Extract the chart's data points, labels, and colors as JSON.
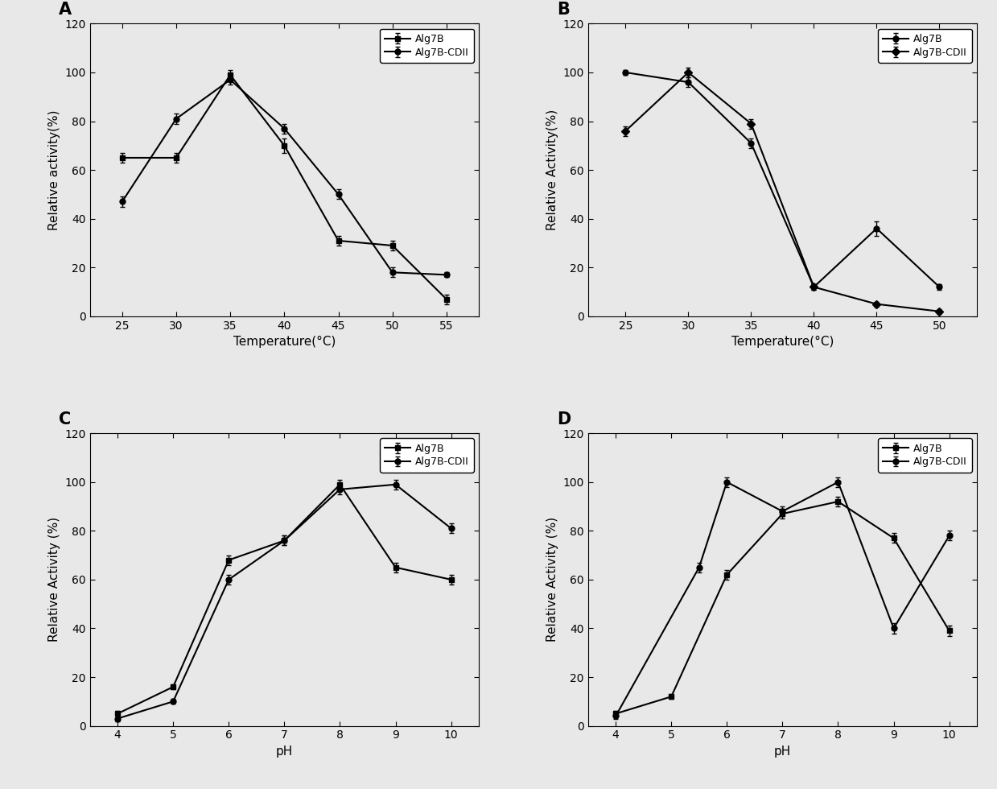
{
  "A": {
    "label": "A",
    "xlabel": "Temperature(°C)",
    "ylabel": "Relative activity(%)",
    "xlim": [
      22,
      58
    ],
    "ylim": [
      0,
      120
    ],
    "xticks": [
      25,
      30,
      35,
      40,
      45,
      50,
      55
    ],
    "yticks": [
      0,
      20,
      40,
      60,
      80,
      100,
      120
    ],
    "series": [
      {
        "name": "Alg7B",
        "marker": "s",
        "x": [
          25,
          30,
          35,
          40,
          45,
          50,
          55
        ],
        "y": [
          65,
          65,
          99,
          70,
          31,
          29,
          7
        ],
        "yerr": [
          2,
          2,
          2,
          3,
          2,
          2,
          2
        ]
      },
      {
        "name": "Alg7B-CDII",
        "marker": "o",
        "x": [
          25,
          30,
          35,
          40,
          45,
          50,
          55
        ],
        "y": [
          47,
          81,
          97,
          77,
          50,
          18,
          17
        ],
        "yerr": [
          2,
          2,
          2,
          2,
          2,
          2,
          1
        ]
      }
    ]
  },
  "B": {
    "label": "B",
    "xlabel": "Temperature(°C)",
    "ylabel": "Relative Activity(%)",
    "xlim": [
      22,
      53
    ],
    "ylim": [
      0,
      120
    ],
    "xticks": [
      25,
      30,
      35,
      40,
      45,
      50
    ],
    "yticks": [
      0,
      20,
      40,
      60,
      80,
      100,
      120
    ],
    "series": [
      {
        "name": "Alg7B",
        "marker": "o",
        "x": [
          25,
          30,
          35,
          40,
          45,
          50
        ],
        "y": [
          100,
          96,
          71,
          12,
          36,
          12
        ],
        "yerr": [
          1,
          2,
          2,
          1,
          3,
          1
        ]
      },
      {
        "name": "Alg7B-CDII",
        "marker": "D",
        "x": [
          25,
          30,
          35,
          40,
          45,
          50
        ],
        "y": [
          76,
          100,
          79,
          12,
          5,
          2
        ],
        "yerr": [
          2,
          2,
          2,
          1,
          1,
          1
        ]
      }
    ]
  },
  "C": {
    "label": "C",
    "xlabel": "pH",
    "ylabel": "Relative Activity (%)",
    "xlim": [
      3.5,
      10.5
    ],
    "ylim": [
      0,
      120
    ],
    "xticks": [
      4,
      5,
      6,
      7,
      8,
      9,
      10
    ],
    "yticks": [
      0,
      20,
      40,
      60,
      80,
      100,
      120
    ],
    "series": [
      {
        "name": "Alg7B",
        "marker": "s",
        "x": [
          4,
          5,
          6,
          7,
          8,
          9,
          10
        ],
        "y": [
          5,
          16,
          68,
          76,
          99,
          65,
          60
        ],
        "yerr": [
          1,
          1,
          2,
          2,
          2,
          2,
          2
        ]
      },
      {
        "name": "Alg7B-CDII",
        "marker": "o",
        "x": [
          4,
          5,
          6,
          7,
          8,
          9,
          10
        ],
        "y": [
          3,
          10,
          60,
          76,
          97,
          99,
          81
        ],
        "yerr": [
          1,
          1,
          2,
          2,
          2,
          2,
          2
        ]
      }
    ]
  },
  "D": {
    "label": "D",
    "xlabel": "pH",
    "ylabel": "Relative Activity (%)",
    "xlim": [
      3.5,
      10.5
    ],
    "ylim": [
      0,
      120
    ],
    "xticks": [
      4,
      5,
      6,
      7,
      8,
      9,
      10
    ],
    "yticks": [
      0,
      20,
      40,
      60,
      80,
      100,
      120
    ],
    "series": [
      {
        "name": "Alg7B",
        "marker": "s",
        "x": [
          4,
          5,
          6,
          7,
          8,
          9,
          10
        ],
        "y": [
          5,
          12,
          62,
          87,
          92,
          77,
          39
        ],
        "yerr": [
          1,
          1,
          2,
          2,
          2,
          2,
          2
        ]
      },
      {
        "name": "Alg7B-CDII",
        "marker": "o",
        "x": [
          4,
          5.5,
          6,
          7,
          8,
          9,
          10
        ],
        "y": [
          4,
          65,
          100,
          88,
          100,
          40,
          78
        ],
        "yerr": [
          1,
          2,
          2,
          2,
          2,
          2,
          2
        ]
      }
    ]
  },
  "bg_color": "#e8e8e8",
  "line_color": "#000000",
  "marker_size": 5,
  "line_width": 1.5,
  "font_size": 10,
  "label_font_size": 11,
  "panel_label_font_size": 15
}
